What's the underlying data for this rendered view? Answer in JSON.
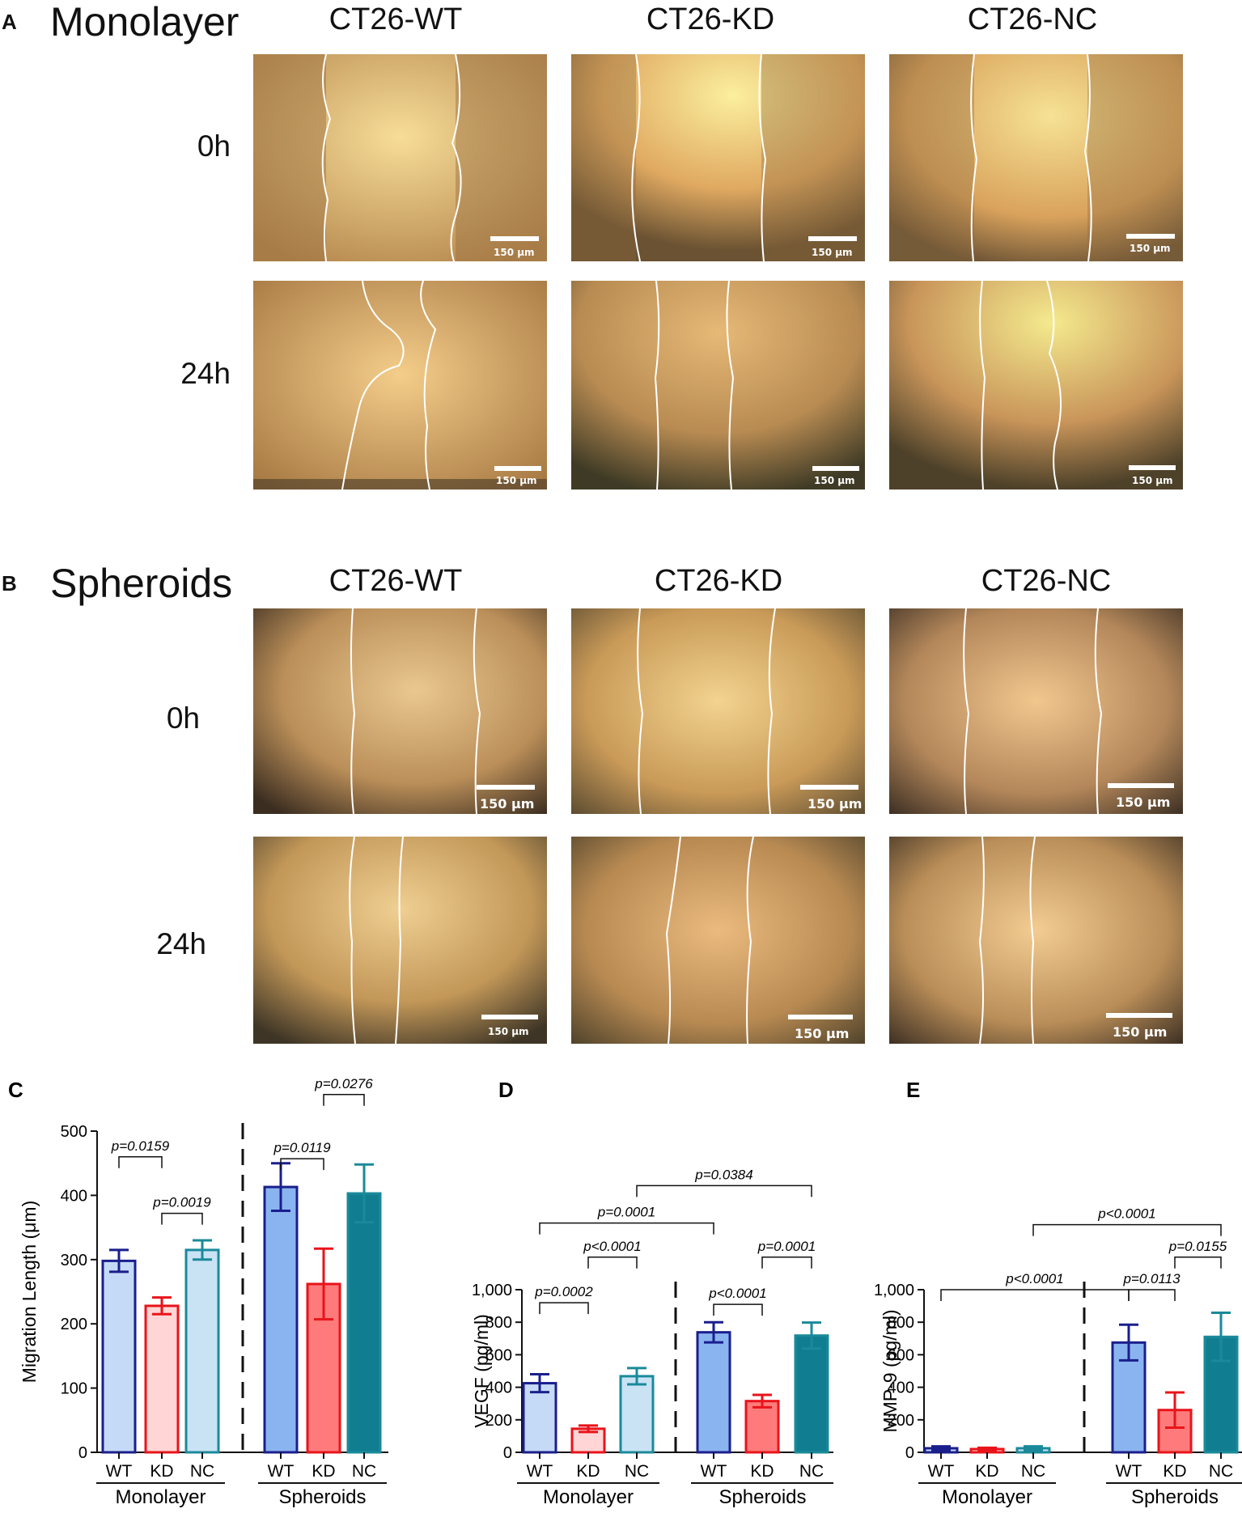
{
  "panels": {
    "A": {
      "letter": "A",
      "title": "Monolayer",
      "columns": [
        "CT26-WT",
        "CT26-KD",
        "CT26-NC"
      ],
      "rows": [
        "0h",
        "24h"
      ]
    },
    "B": {
      "letter": "B",
      "title": "Spheroids",
      "columns": [
        "CT26-WT",
        "CT26-KD",
        "CT26-NC"
      ],
      "rows": [
        "0h",
        "24h"
      ]
    }
  },
  "scale_bar_label": "150 μm",
  "colors": {
    "wt_light": "#c5daf7",
    "wt_dark": "#1a1f8c",
    "wt_sph": "#8ab4f0",
    "kd_light": "#ffd5d5",
    "kd_dark": "#e8141a",
    "kd_sph": "#ff7b7b",
    "nc_light": "#c9e3f5",
    "nc_dark": "#1a8a9a",
    "nc_sph": "#117d91"
  },
  "chart_data": [
    {
      "letter": "C",
      "type": "bar",
      "ylabel": "Migration Length (μm)",
      "ylim": [
        0,
        500
      ],
      "yticks": [
        "0",
        "100",
        "200",
        "300",
        "400",
        "500"
      ],
      "groups": [
        "Monolayer",
        "Spheroids"
      ],
      "categories": [
        "WT",
        "KD",
        "NC",
        "WT",
        "KD",
        "NC"
      ],
      "values": [
        298,
        228,
        315,
        413,
        262,
        403
      ],
      "errors": [
        17,
        13,
        15,
        37,
        55,
        45
      ],
      "comparisons": [
        {
          "from": 0,
          "to": 1,
          "label": "p=0.0159",
          "level": 460
        },
        {
          "from": 1,
          "to": 2,
          "label": "p=0.0019",
          "level": 372
        },
        {
          "from": 3,
          "to": 4,
          "label": "p=0.0119",
          "level": 457
        },
        {
          "from": 4,
          "to": 5,
          "label": "p=0.0276",
          "level": 557
        }
      ]
    },
    {
      "letter": "D",
      "type": "bar",
      "ylabel": "VEGF (pg/ml)",
      "ylim": [
        0,
        1000
      ],
      "yticks": [
        "0",
        "200",
        "400",
        "600",
        "800",
        "1,000"
      ],
      "groups": [
        "Monolayer",
        "Spheroids"
      ],
      "categories": [
        "WT",
        "KD",
        "NC",
        "WT",
        "KD",
        "NC"
      ],
      "values": [
        425,
        145,
        468,
        738,
        315,
        718
      ],
      "errors": [
        55,
        20,
        50,
        62,
        38,
        80
      ],
      "comparisons": [
        {
          "from": 0,
          "to": 1,
          "label": "p=0.0002",
          "level": 920
        },
        {
          "from": 1,
          "to": 2,
          "label": "p<0.0001",
          "level": 1200
        },
        {
          "from": 3,
          "to": 4,
          "label": "p<0.0001",
          "level": 910
        },
        {
          "from": 4,
          "to": 5,
          "label": "p=0.0001",
          "level": 1200
        },
        {
          "from": 0,
          "to": 3,
          "label": "p=0.0001",
          "level": 1410
        },
        {
          "from": 2,
          "to": 5,
          "label": "p=0.0384",
          "level": 1640
        }
      ]
    },
    {
      "letter": "E",
      "type": "bar",
      "ylabel": "MMP-9 (pg/ml)",
      "ylim": [
        0,
        1000
      ],
      "yticks": [
        "0",
        "200",
        "400",
        "600",
        "800",
        "1,000"
      ],
      "groups": [
        "Monolayer",
        "Spheroids"
      ],
      "categories": [
        "WT",
        "KD",
        "NC",
        "WT",
        "KD",
        "NC"
      ],
      "values": [
        25,
        20,
        25,
        675,
        260,
        710
      ],
      "errors": [
        12,
        8,
        12,
        110,
        108,
        148
      ],
      "comparisons": [
        {
          "from": 0,
          "to": 3,
          "label": "p<0.0001",
          "level": 1000
        },
        {
          "from": 3,
          "to": 4,
          "label": "p=0.0113",
          "level": 1000
        },
        {
          "from": 4,
          "to": 5,
          "label": "p=0.0155",
          "level": 1200
        },
        {
          "from": 2,
          "to": 5,
          "label": "p<0.0001",
          "level": 1400
        }
      ]
    }
  ]
}
